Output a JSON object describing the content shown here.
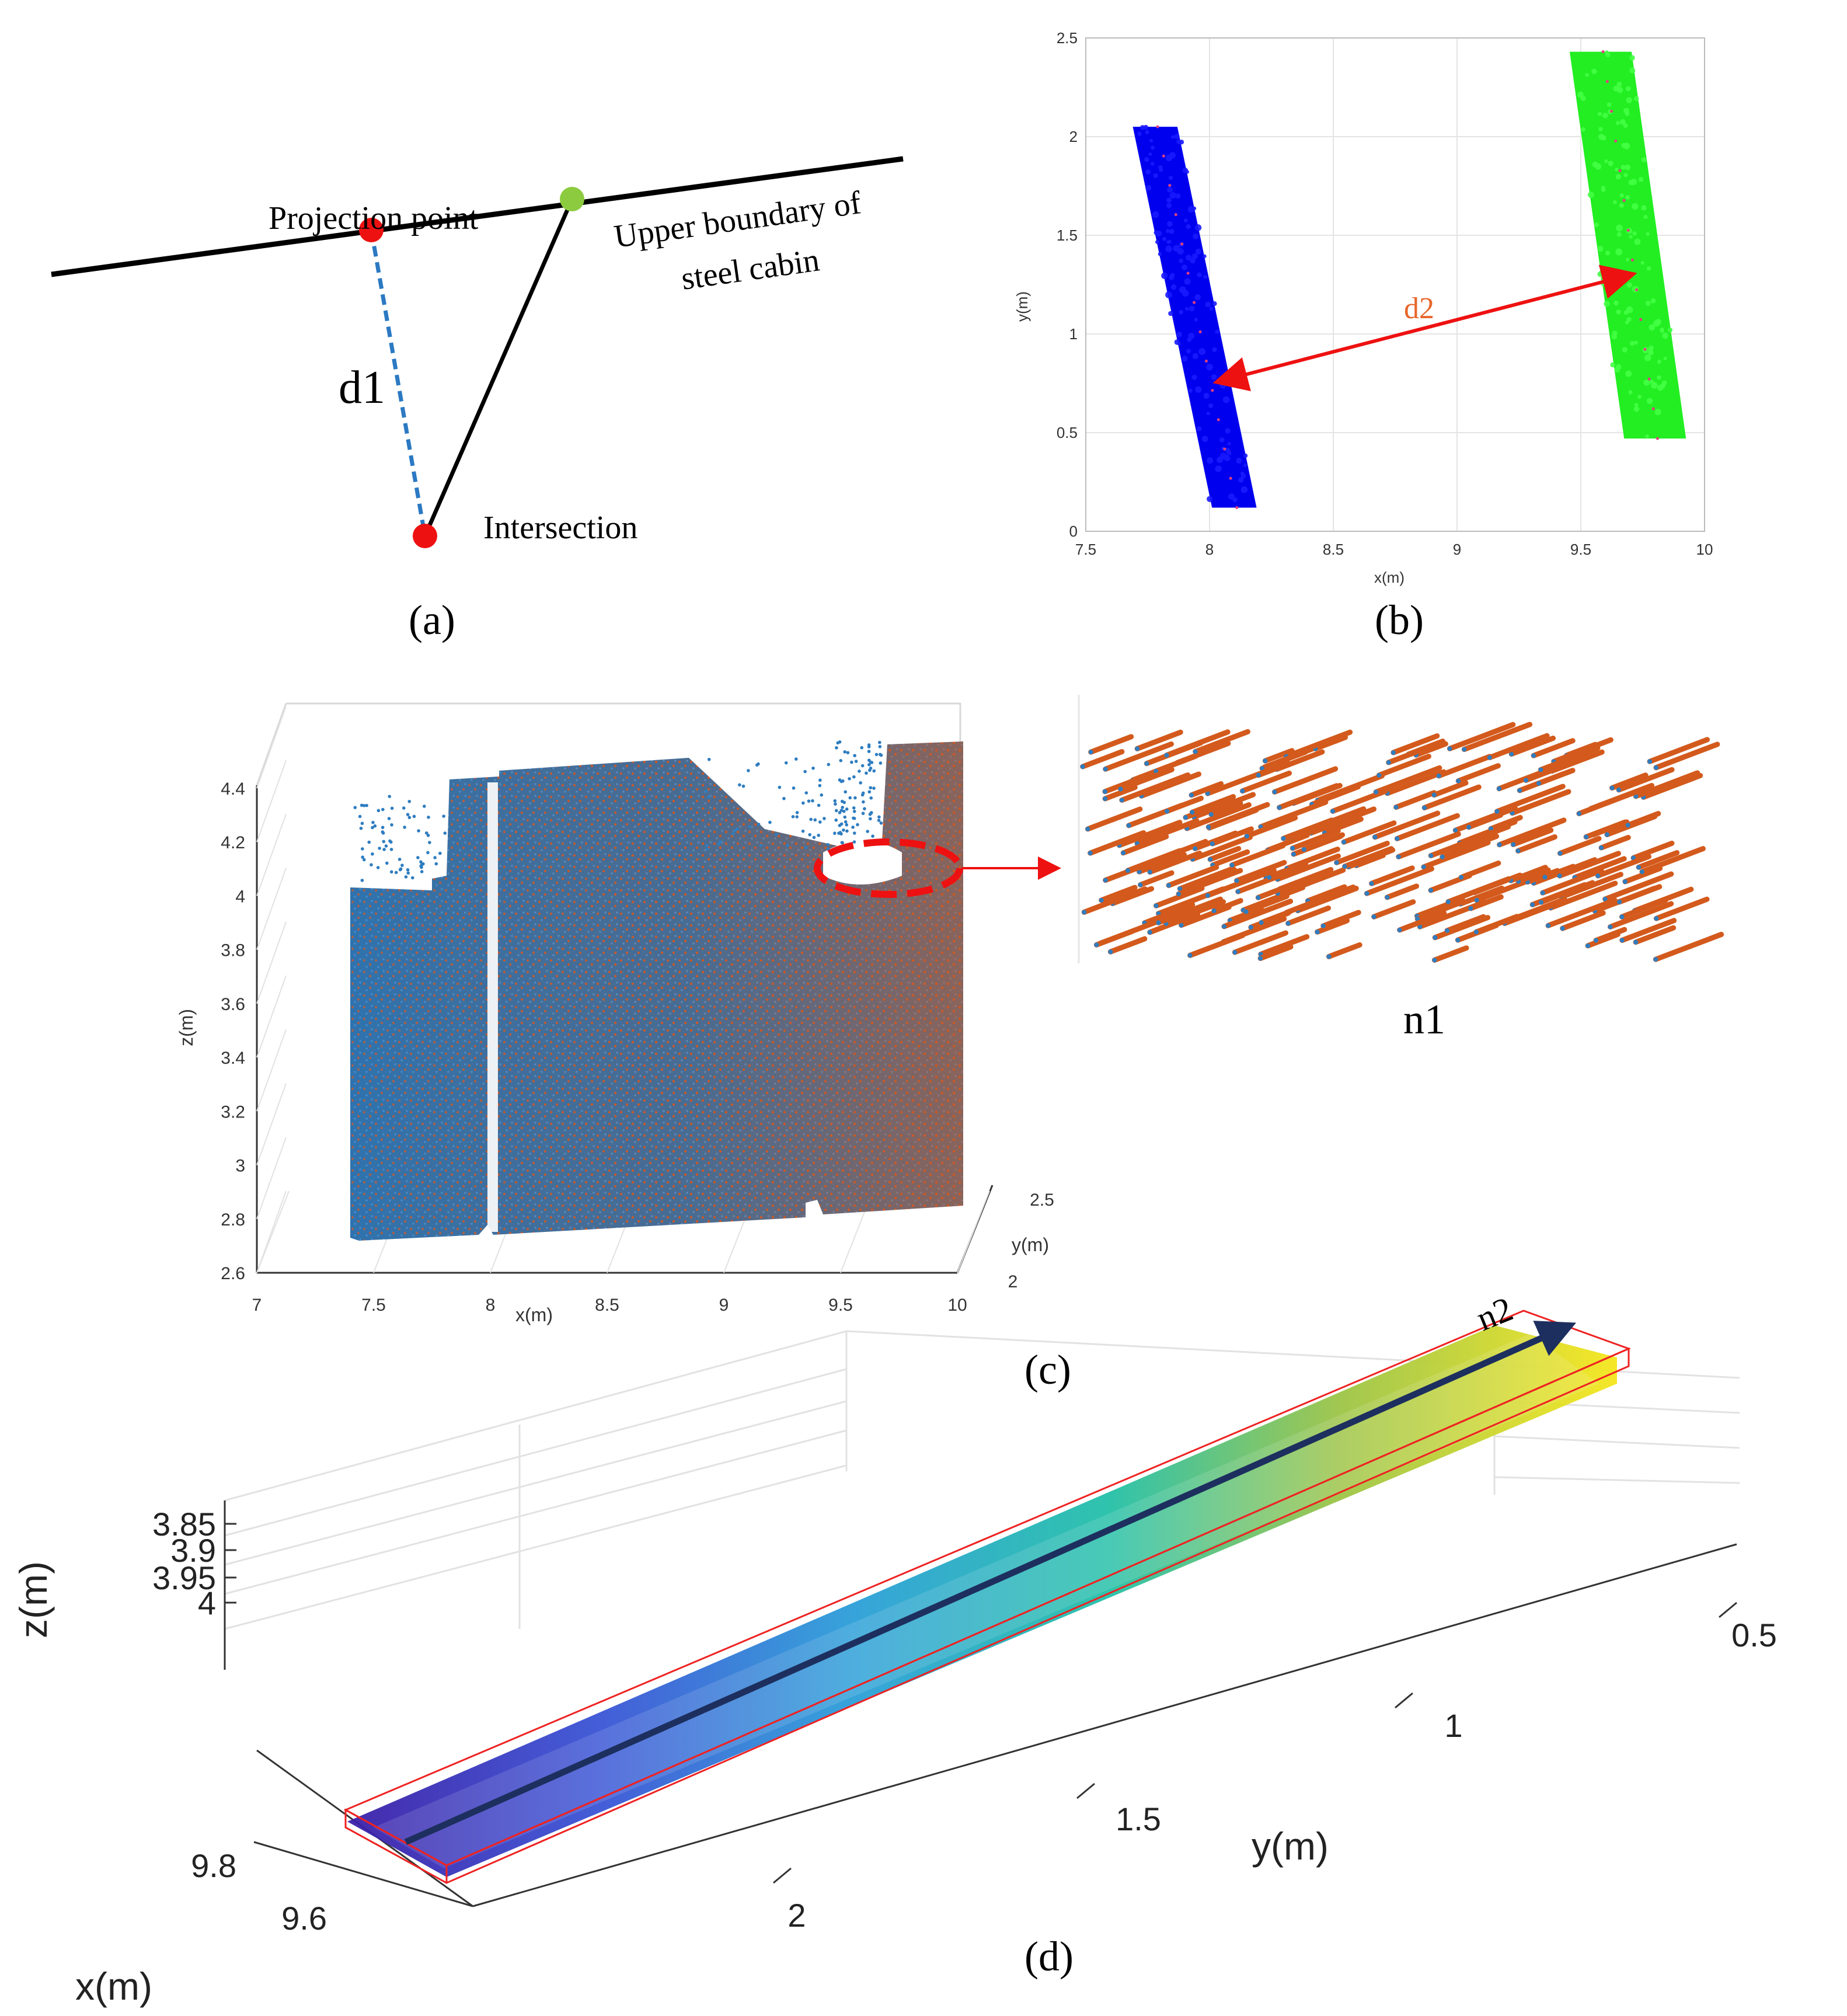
{
  "panel_a": {
    "label": "(a)",
    "projection_label": "Projection point",
    "boundary_label_line1": "Upper boundary of",
    "boundary_label_line2": "steel cabin",
    "d1_label": "d1",
    "intersection_label": "Intersection"
  },
  "panel_b": {
    "label": "(b)",
    "d2_label": "d2"
  },
  "panel_c": {
    "label": "(c)",
    "inset_label": "n1"
  },
  "panel_d": {
    "label": "(d)",
    "arrow_label": "n2"
  },
  "colors": {
    "blue_cluster": "#0000ee",
    "green_cluster": "#22ee22",
    "point_blue": "#2f7dc0",
    "point_orange": "#d35a1c",
    "red": "#ee1111",
    "arrow_navy": "#1d2f5e"
  },
  "chart_data": [
    {
      "type": "scatter",
      "panel": "b",
      "title": "",
      "xlabel": "x(m)",
      "ylabel": "y(m)",
      "xlim": [
        7.5,
        10
      ],
      "ylim": [
        0,
        2.5
      ],
      "x_ticks": [
        "7.5",
        "8",
        "8.5",
        "9",
        "9.5",
        "10"
      ],
      "y_ticks": [
        "0",
        "0.5",
        "1",
        "1.5",
        "2",
        "2.5"
      ],
      "grid": true,
      "series": [
        {
          "name": "blue cluster",
          "centerline": [
            [
              7.78,
              2.05
            ],
            [
              8.1,
              0.12
            ]
          ],
          "width": 0.18
        },
        {
          "name": "green cluster",
          "centerline": [
            [
              9.58,
              2.43
            ],
            [
              9.8,
              0.47
            ]
          ],
          "width": 0.25
        }
      ],
      "annotation": {
        "text": "d2",
        "from": [
          8.04,
          0.76
        ],
        "to": [
          9.7,
          1.3
        ]
      }
    },
    {
      "type": "scatter",
      "panel": "c",
      "projection": "3d",
      "xlabel": "x(m)",
      "ylabel": "y(m)",
      "zlabel": "z(m)",
      "xlim": [
        7,
        10
      ],
      "ylim": [
        2,
        2.5
      ],
      "zlim": [
        2.6,
        4.4
      ],
      "x_ticks": [
        "7",
        "7.5",
        "8",
        "8.5",
        "9",
        "9.5",
        "10"
      ],
      "y_ticks": [
        "2",
        "2.5"
      ],
      "z_ticks": [
        "2.6",
        "2.8",
        "3",
        "3.2",
        "3.4",
        "3.6",
        "3.8",
        "4",
        "4.2",
        "4.4"
      ],
      "grid": true,
      "series": [
        {
          "name": "points",
          "color": "blue"
        },
        {
          "name": "normals",
          "color": "orange"
        }
      ]
    },
    {
      "type": "scatter",
      "panel": "d",
      "projection": "3d",
      "xlabel": "x(m)",
      "ylabel": "y(m)",
      "zlabel": "z(m)",
      "x_ticks": [
        "9.6",
        "9.8"
      ],
      "y_ticks": [
        "2",
        "1.5",
        "1",
        "0.5"
      ],
      "z_ticks": [
        "3.85",
        "3.9",
        "3.95",
        "4"
      ],
      "grid": true,
      "colormap": "parula"
    }
  ]
}
